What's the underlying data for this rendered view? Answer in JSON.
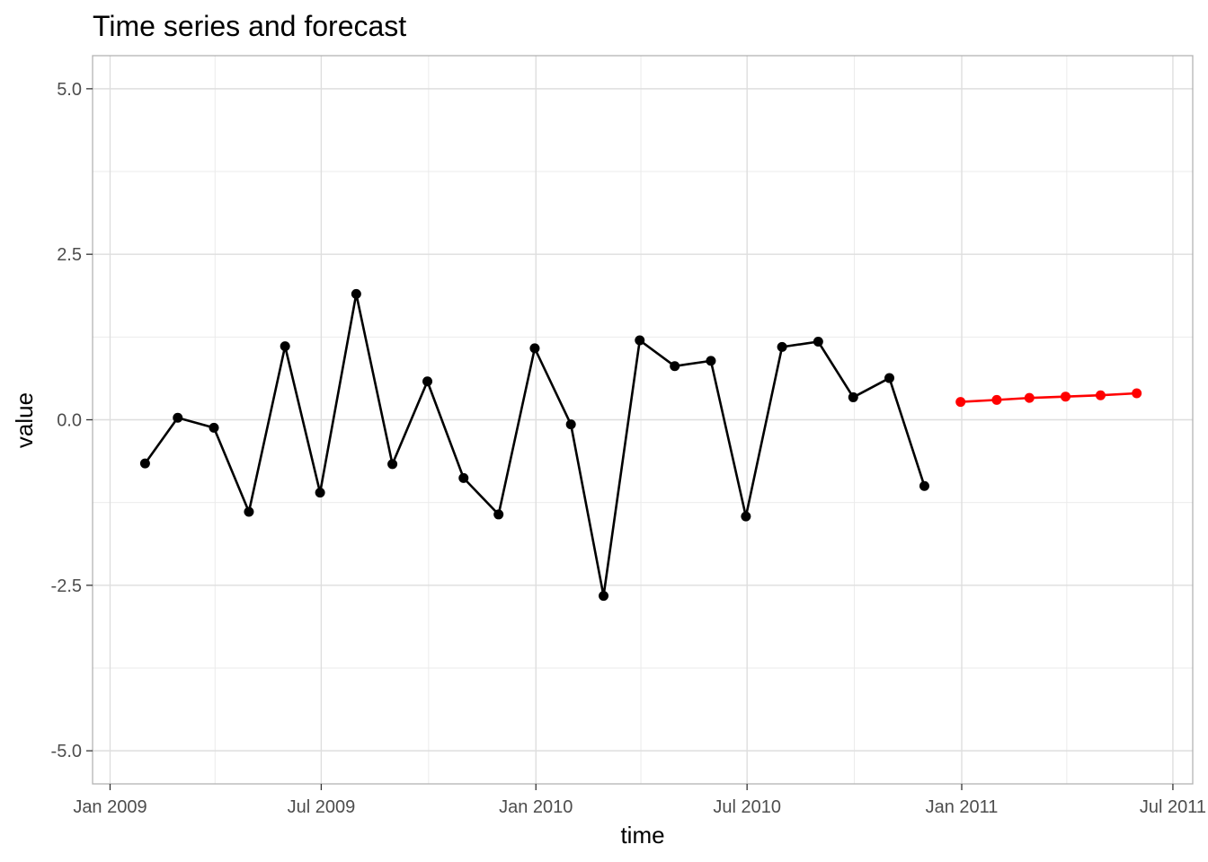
{
  "chart_data": {
    "type": "line",
    "title": "Time series and forecast",
    "xlabel": "time",
    "ylabel": "value",
    "grid": true,
    "xlim": [
      "2008-12-17",
      "2011-07-18"
    ],
    "ylim": [
      -5.5,
      5.5
    ],
    "x_ticks": [
      {
        "date": "2009-01-01",
        "label": "Jan 2009"
      },
      {
        "date": "2009-07-01",
        "label": "Jul 2009"
      },
      {
        "date": "2010-01-01",
        "label": "Jan 2010"
      },
      {
        "date": "2010-07-01",
        "label": "Jul 2010"
      },
      {
        "date": "2011-01-01",
        "label": "Jan 2011"
      },
      {
        "date": "2011-07-01",
        "label": "Jul 2011"
      }
    ],
    "x_minor_ticks": [
      "2009-04-01",
      "2009-10-01",
      "2010-04-01",
      "2010-10-01",
      "2011-04-01"
    ],
    "y_ticks": [
      {
        "value": 5.0,
        "label": "5.0"
      },
      {
        "value": 2.5,
        "label": "2.5"
      },
      {
        "value": 0.0,
        "label": "0.0"
      },
      {
        "value": -2.5,
        "label": "-2.5"
      },
      {
        "value": -5.0,
        "label": "-5.0"
      }
    ],
    "y_minor_ticks": [
      3.75,
      1.25,
      -1.25,
      -3.75
    ],
    "series": [
      {
        "color": "#000000",
        "x": [
          "2009-01-31",
          "2009-02-28",
          "2009-03-31",
          "2009-04-30",
          "2009-05-31",
          "2009-06-30",
          "2009-07-31",
          "2009-08-31",
          "2009-09-30",
          "2009-10-31",
          "2009-11-30",
          "2009-12-31",
          "2010-01-31",
          "2010-02-28",
          "2010-03-31",
          "2010-04-30",
          "2010-05-31",
          "2010-06-30",
          "2010-07-31",
          "2010-08-31",
          "2010-09-30",
          "2010-10-31",
          "2010-11-30"
        ],
        "values": [
          -0.66,
          0.03,
          -0.12,
          -1.39,
          1.11,
          -1.1,
          1.9,
          -0.67,
          0.58,
          -0.88,
          -1.43,
          1.08,
          -0.07,
          -2.66,
          1.2,
          0.81,
          0.89,
          -1.46,
          1.1,
          1.18,
          0.34,
          0.63,
          -1.0
        ]
      },
      {
        "color": "#ff0000",
        "x": [
          "2010-12-31",
          "2011-01-31",
          "2011-02-28",
          "2011-03-31",
          "2011-04-30",
          "2011-05-31"
        ],
        "values": [
          0.27,
          0.3,
          0.33,
          0.35,
          0.37,
          0.4
        ]
      }
    ]
  }
}
